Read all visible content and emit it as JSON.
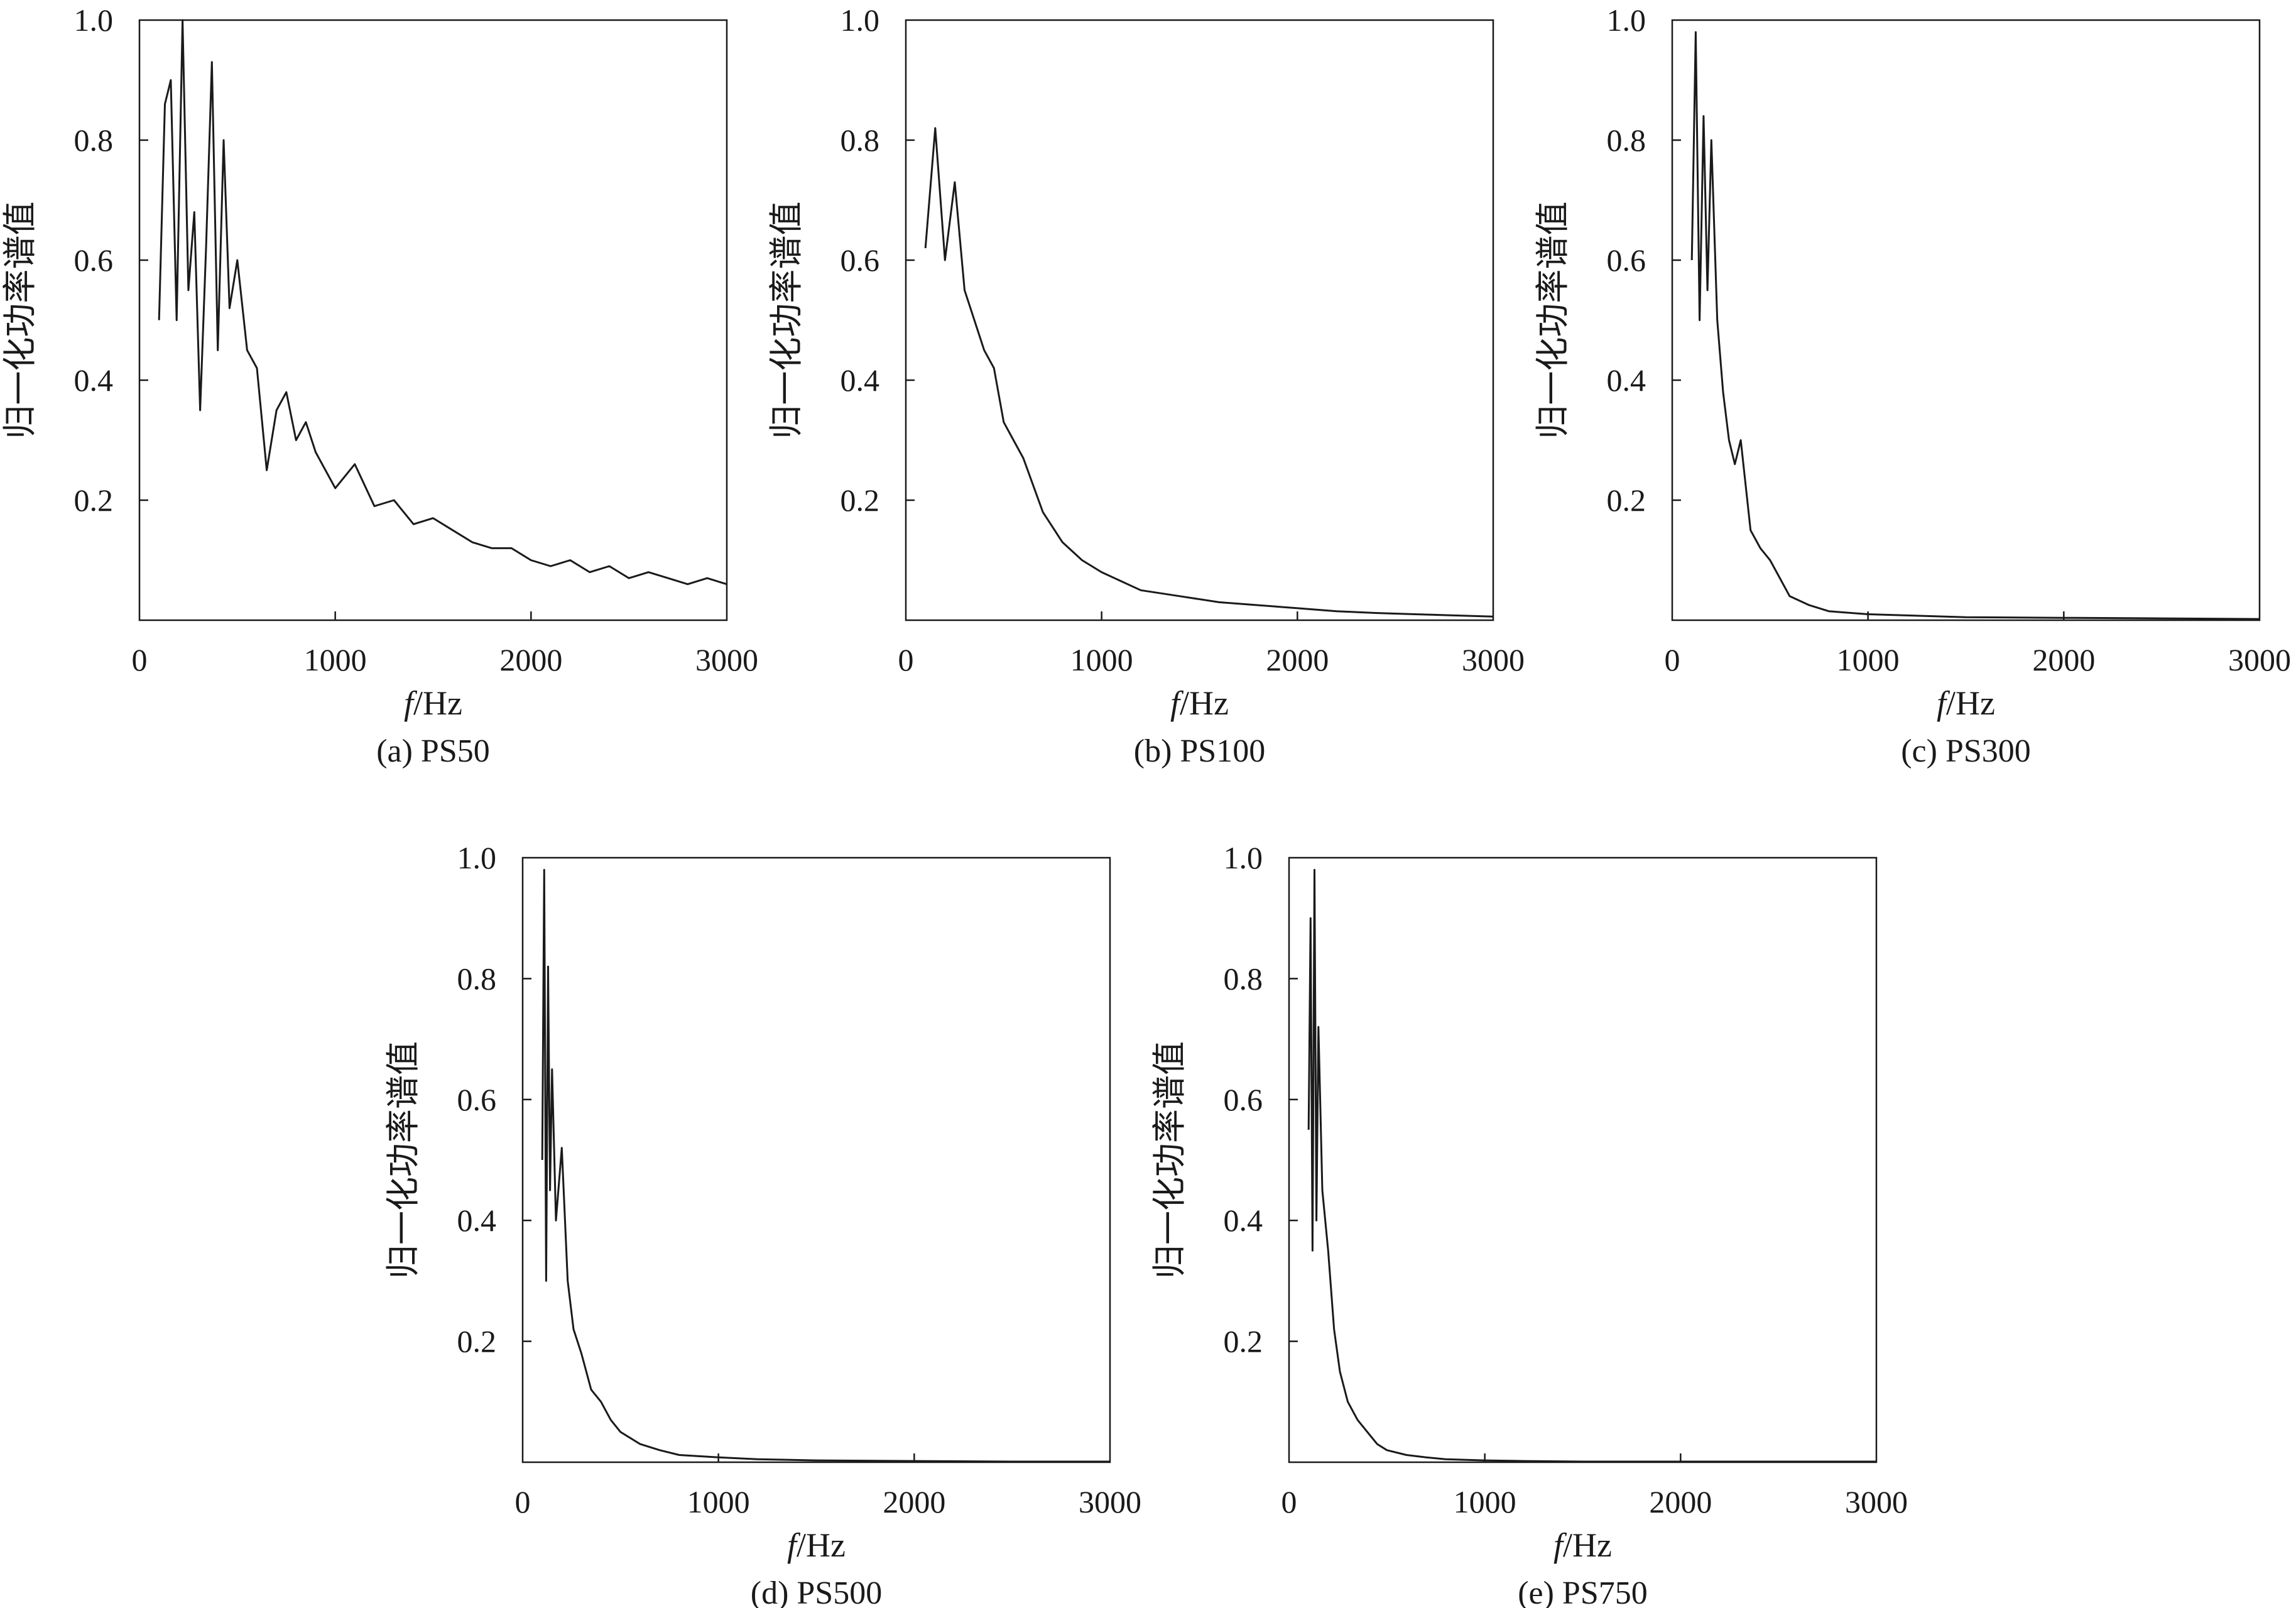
{
  "figure": {
    "chart_data": [
      {
        "type": "line",
        "caption": "(a) PS50",
        "xlabel": "f/Hz",
        "ylabel": "归一化功率谱值",
        "xlim": [
          0,
          3000
        ],
        "ylim": [
          0,
          1.0
        ],
        "xticks": [
          "0",
          "1000",
          "2000",
          "3000"
        ],
        "yticks": [
          "0.2",
          "0.4",
          "0.6",
          "0.8",
          "1.0"
        ],
        "grid": false,
        "line_color": "#1a1a1a",
        "series": [
          {
            "x": [
              100,
              130,
              160,
              190,
              220,
              250,
              280,
              310,
              340,
              370,
              400,
              430,
              460,
              500,
              550,
              600,
              650,
              700,
              750,
              800,
              850,
              900,
              1000,
              1100,
              1200,
              1300,
              1400,
              1500,
              1600,
              1700,
              1800,
              1900,
              2000,
              2100,
              2200,
              2300,
              2400,
              2500,
              2600,
              2700,
              2800,
              2900,
              3000
            ],
            "values": [
              0.5,
              0.86,
              0.9,
              0.5,
              1.0,
              0.55,
              0.68,
              0.35,
              0.62,
              0.93,
              0.45,
              0.8,
              0.52,
              0.6,
              0.45,
              0.42,
              0.25,
              0.35,
              0.38,
              0.3,
              0.33,
              0.28,
              0.22,
              0.26,
              0.19,
              0.2,
              0.16,
              0.17,
              0.15,
              0.13,
              0.12,
              0.12,
              0.1,
              0.09,
              0.1,
              0.08,
              0.09,
              0.07,
              0.08,
              0.07,
              0.06,
              0.07,
              0.06
            ]
          }
        ]
      },
      {
        "type": "line",
        "caption": "(b) PS100",
        "xlabel": "f/Hz",
        "ylabel": "归一化功率谱值",
        "xlim": [
          0,
          3000
        ],
        "ylim": [
          0,
          1.0
        ],
        "xticks": [
          "0",
          "1000",
          "2000",
          "3000"
        ],
        "yticks": [
          "0.2",
          "0.4",
          "0.6",
          "0.8",
          "1.0"
        ],
        "grid": false,
        "line_color": "#1a1a1a",
        "series": [
          {
            "x": [
              100,
              150,
              200,
              250,
              300,
              350,
              400,
              450,
              500,
              550,
              600,
              700,
              800,
              900,
              1000,
              1200,
              1400,
              1600,
              1800,
              2000,
              2200,
              2400,
              2600,
              2800,
              3000
            ],
            "values": [
              0.62,
              0.82,
              0.6,
              0.73,
              0.55,
              0.5,
              0.45,
              0.42,
              0.33,
              0.3,
              0.27,
              0.18,
              0.13,
              0.1,
              0.08,
              0.05,
              0.04,
              0.03,
              0.025,
              0.02,
              0.015,
              0.012,
              0.01,
              0.008,
              0.006
            ]
          }
        ]
      },
      {
        "type": "line",
        "caption": "(c) PS300",
        "xlabel": "f/Hz",
        "ylabel": "归一化功率谱值",
        "xlim": [
          0,
          3000
        ],
        "ylim": [
          0,
          1.0
        ],
        "xticks": [
          "0",
          "1000",
          "2000",
          "3000"
        ],
        "yticks": [
          "0.2",
          "0.4",
          "0.6",
          "0.8",
          "1.0"
        ],
        "grid": false,
        "line_color": "#1a1a1a",
        "series": [
          {
            "x": [
              100,
              120,
              140,
              160,
              180,
              200,
              230,
              260,
              290,
              320,
              350,
              400,
              450,
              500,
              550,
              600,
              700,
              800,
              1000,
              1200,
              1500,
              2000,
              2500,
              3000
            ],
            "values": [
              0.6,
              0.98,
              0.5,
              0.84,
              0.55,
              0.8,
              0.5,
              0.38,
              0.3,
              0.26,
              0.3,
              0.15,
              0.12,
              0.1,
              0.07,
              0.04,
              0.025,
              0.015,
              0.01,
              0.008,
              0.005,
              0.004,
              0.003,
              0.002
            ]
          }
        ]
      },
      {
        "type": "line",
        "caption": "(d) PS500",
        "xlabel": "f/Hz",
        "ylabel": "归一化功率谱值",
        "xlim": [
          0,
          3000
        ],
        "ylim": [
          0,
          1.0
        ],
        "xticks": [
          "0",
          "1000",
          "2000",
          "3000"
        ],
        "yticks": [
          "0.2",
          "0.4",
          "0.6",
          "0.8",
          "1.0"
        ],
        "grid": false,
        "line_color": "#1a1a1a",
        "series": [
          {
            "x": [
              100,
              110,
              120,
              130,
              140,
              150,
              170,
              200,
              230,
              260,
              300,
              350,
              400,
              450,
              500,
              600,
              700,
              800,
              1000,
              1200,
              1500,
              2000,
              2500,
              3000
            ],
            "values": [
              0.5,
              0.98,
              0.3,
              0.82,
              0.45,
              0.65,
              0.4,
              0.52,
              0.3,
              0.22,
              0.18,
              0.12,
              0.1,
              0.07,
              0.05,
              0.03,
              0.02,
              0.012,
              0.008,
              0.005,
              0.003,
              0.002,
              0.001,
              0.001
            ]
          }
        ]
      },
      {
        "type": "line",
        "caption": "(e) PS750",
        "xlabel": "f/Hz",
        "ylabel": "归一化功率谱值",
        "xlim": [
          0,
          3000
        ],
        "ylim": [
          0,
          1.0
        ],
        "xticks": [
          "0",
          "1000",
          "2000",
          "3000"
        ],
        "yticks": [
          "0.2",
          "0.4",
          "0.6",
          "0.8",
          "1.0"
        ],
        "grid": false,
        "line_color": "#1a1a1a",
        "series": [
          {
            "x": [
              100,
              110,
              120,
              130,
              140,
              150,
              170,
              200,
              230,
              260,
              300,
              350,
              400,
              450,
              500,
              600,
              700,
              800,
              1000,
              1200,
              1500,
              2000,
              2500,
              3000
            ],
            "values": [
              0.55,
              0.9,
              0.35,
              0.98,
              0.4,
              0.72,
              0.45,
              0.35,
              0.22,
              0.15,
              0.1,
              0.07,
              0.05,
              0.03,
              0.02,
              0.012,
              0.008,
              0.005,
              0.003,
              0.002,
              0.001,
              0.001,
              0.001,
              0.001
            ]
          }
        ]
      }
    ]
  }
}
